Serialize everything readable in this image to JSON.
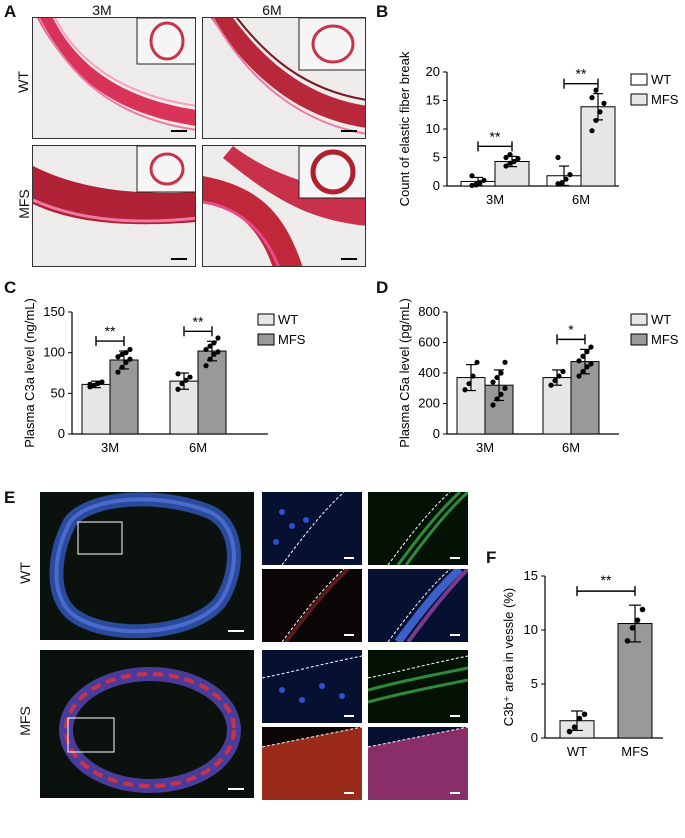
{
  "panels": {
    "A": {
      "letter": "A",
      "col_labels": [
        "3M",
        "6M"
      ],
      "row_labels": [
        "WT",
        "MFS"
      ]
    },
    "B": {
      "letter": "B"
    },
    "C": {
      "letter": "C"
    },
    "D": {
      "letter": "D"
    },
    "E": {
      "letter": "E",
      "row_labels": [
        "WT",
        "MFS"
      ]
    },
    "F": {
      "letter": "F"
    }
  },
  "colors": {
    "wt_bar": "#e6e6e6",
    "mfs_bar": "#999999",
    "b_mfs_bar": "#e6e6e6",
    "fluor_bg": "#0b120e",
    "tissue_red": "#c8324a",
    "stain_pink": "#e84a8a"
  },
  "chart_data": [
    {
      "id": "B",
      "type": "bar",
      "categories": [
        "3M",
        "6M"
      ],
      "ylabel": "Count of elastic fiber break",
      "ylim": [
        0,
        20
      ],
      "yticks": [
        0,
        5,
        10,
        15,
        20
      ],
      "series": [
        {
          "name": "WT",
          "values": [
            0.8,
            1.8
          ],
          "sd": [
            0.7,
            1.7
          ]
        },
        {
          "name": "MFS",
          "values": [
            4.3,
            13.9
          ],
          "sd": [
            0.9,
            2.3
          ]
        }
      ],
      "points": {
        "WT": [
          [
            0.1,
            0.3,
            0.6,
            1.0,
            1.8,
            0.2
          ],
          [
            0.4,
            0.5,
            1.2,
            2.0,
            5.0,
            0.6
          ]
        ],
        "MFS": [
          [
            3.5,
            4.0,
            4.3,
            4.8,
            5.0,
            5.5
          ],
          [
            9.7,
            11.5,
            13.0,
            14.5,
            15.5,
            16.8
          ]
        ]
      },
      "significance": [
        "**",
        "**"
      ],
      "legend": "top-right"
    },
    {
      "id": "C",
      "type": "bar",
      "categories": [
        "3M",
        "6M"
      ],
      "ylabel": "Plasma C3a level (ng/mL)",
      "ylim": [
        0,
        150
      ],
      "yticks": [
        0,
        50,
        100,
        150
      ],
      "series": [
        {
          "name": "WT",
          "values": [
            61,
            65
          ],
          "sd": [
            4,
            10
          ]
        },
        {
          "name": "MFS",
          "values": [
            91,
            102
          ],
          "sd": [
            11,
            12
          ]
        }
      ],
      "points": {
        "WT": [
          [
            58,
            60,
            62,
            64,
            61
          ],
          [
            55,
            62,
            66,
            70,
            74
          ]
        ],
        "MFS": [
          [
            76,
            82,
            88,
            92,
            95,
            98,
            100,
            104
          ],
          [
            84,
            92,
            98,
            101,
            104,
            108,
            112,
            118
          ]
        ]
      },
      "significance": [
        "**",
        "**"
      ],
      "legend": "top-right"
    },
    {
      "id": "D",
      "type": "bar",
      "categories": [
        "3M",
        "6M"
      ],
      "ylabel": "Plasma C5a level (pg/mL)",
      "ylim": [
        0,
        800
      ],
      "yticks": [
        0,
        200,
        400,
        600,
        800
      ],
      "series": [
        {
          "name": "WT",
          "values": [
            370,
            370
          ],
          "sd": [
            85,
            50
          ]
        },
        {
          "name": "MFS",
          "values": [
            320,
            475
          ],
          "sd": [
            100,
            80
          ]
        }
      ],
      "points": {
        "WT": [
          [
            290,
            330,
            380,
            470
          ],
          [
            320,
            350,
            380,
            410
          ]
        ],
        "MFS": [
          [
            190,
            230,
            260,
            300,
            340,
            370,
            400,
            470
          ],
          [
            380,
            410,
            440,
            460,
            480,
            510,
            540,
            570
          ]
        ]
      },
      "significance": [
        "",
        "*"
      ],
      "legend": "top-right"
    },
    {
      "id": "F",
      "type": "bar",
      "categories": [
        "WT",
        "MFS"
      ],
      "ylabel": "C3b⁺ area in vessle (%)",
      "ylim": [
        0,
        15
      ],
      "yticks": [
        0,
        5,
        10,
        15
      ],
      "values": [
        1.6,
        10.6
      ],
      "sd": [
        0.9,
        1.7
      ],
      "points": [
        [
          0.6,
          1.0,
          1.8,
          2.2
        ],
        [
          9.0,
          10.2,
          10.9,
          11.9
        ]
      ],
      "significance": "**"
    }
  ]
}
